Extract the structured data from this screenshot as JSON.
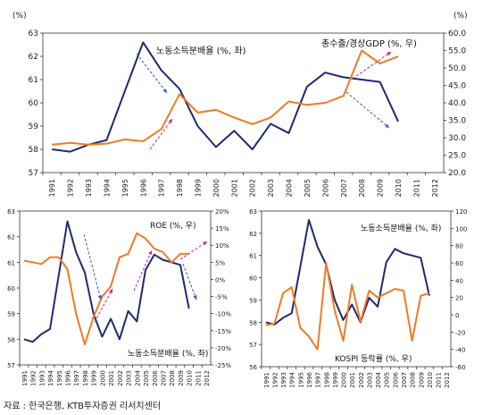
{
  "source": "자료 : 한국은행, KTB투자증권 리서치센터",
  "colors": {
    "labor": "#1f2a6e",
    "other": "#f07a24",
    "axis": "#333333",
    "arrow_red": "#cc2288",
    "arrow_blue": "#2f5fb4"
  },
  "chart_data": [
    {
      "type": "line",
      "title": "",
      "dual_axis": true,
      "left_unit": "(%)",
      "right_unit": "(%)",
      "categories": [
        "1991",
        "1992",
        "1993",
        "1994",
        "1995",
        "1996",
        "1997",
        "1998",
        "1999",
        "2000",
        "2001",
        "2002",
        "2003",
        "2004",
        "2005",
        "2006",
        "2007",
        "2008",
        "2009",
        "2010",
        "2011",
        "2012"
      ],
      "yleft": {
        "min": 57,
        "max": 63,
        "ticks": [
          "57",
          "58",
          "59",
          "60",
          "61",
          "62",
          "63"
        ]
      },
      "yright": {
        "min": 20,
        "max": 60,
        "ticks": [
          "20.0",
          "25.0",
          "30.0",
          "35.0",
          "40.0",
          "45.0",
          "50.0",
          "55.0",
          "60.0"
        ]
      },
      "series": [
        {
          "name": "노동소득분배율 (%, 좌)",
          "axis": "left",
          "color": "#1f2a6e",
          "values": [
            58.0,
            57.9,
            58.2,
            58.4,
            60.5,
            62.6,
            61.4,
            60.6,
            59.0,
            58.1,
            58.8,
            58.0,
            59.1,
            58.7,
            60.7,
            61.3,
            61.1,
            61.0,
            60.9,
            59.2,
            null,
            null
          ]
        },
        {
          "name": "총수출/경상GDP (%, 우)",
          "axis": "right",
          "color": "#f07a24",
          "values": [
            28.0,
            28.5,
            28.0,
            28.3,
            29.5,
            29.0,
            32.5,
            42.5,
            37.2,
            38.0,
            35.8,
            33.9,
            35.8,
            40.4,
            39.4,
            40.0,
            42.0,
            55.0,
            51.3,
            53.3,
            null,
            null
          ]
        }
      ],
      "annotations": [
        "노동소득분배율 (%, 좌)",
        "총수출/경상GDP (%, 우)"
      ]
    },
    {
      "type": "line",
      "title": "",
      "dual_axis": true,
      "categories": [
        "1991",
        "1992",
        "1993",
        "1994",
        "1995",
        "1996",
        "1997",
        "1998",
        "1999",
        "2000",
        "2001",
        "2002",
        "2003",
        "2004",
        "2005",
        "2006",
        "2007",
        "2008",
        "2009",
        "2010",
        "2011",
        "2012"
      ],
      "yleft": {
        "min": 57,
        "max": 63,
        "ticks": [
          "57",
          "58",
          "59",
          "60",
          "61",
          "62",
          "63"
        ]
      },
      "yright": {
        "min": -25,
        "max": 20,
        "ticks": [
          "-25%",
          "-20%",
          "-15%",
          "-10%",
          "-5%",
          "0%",
          "5%",
          "10%",
          "15%",
          "20%"
        ]
      },
      "series": [
        {
          "name": "노동소득분배율 (%, 좌)",
          "axis": "left",
          "color": "#1f2a6e",
          "values": [
            58.0,
            57.9,
            58.2,
            58.4,
            60.5,
            62.6,
            61.4,
            60.6,
            59.0,
            58.1,
            58.8,
            58.0,
            59.1,
            58.7,
            60.7,
            61.3,
            61.1,
            61.0,
            60.9,
            59.2,
            null,
            null
          ]
        },
        {
          "name": "ROE (%, 우)",
          "axis": "right",
          "color": "#f07a24",
          "values": [
            5.5,
            5.0,
            4.5,
            6.5,
            6.5,
            3.0,
            -10.0,
            -19.0,
            -11.0,
            -5.0,
            -2.0,
            6.5,
            7.5,
            13.5,
            12.0,
            9.0,
            8.0,
            5.0,
            7.5,
            7.5,
            null,
            null
          ]
        }
      ],
      "annotations": [
        "ROE (%, 우)",
        "노동소득분배율 (%, 좌)"
      ]
    },
    {
      "type": "line",
      "title": "",
      "dual_axis": true,
      "categories": [
        "1991",
        "1992",
        "1993",
        "1994",
        "1995",
        "1996",
        "1997",
        "1998",
        "1999",
        "2000",
        "2001",
        "2002",
        "2003",
        "2004",
        "2005",
        "2006",
        "2007",
        "2008",
        "2009",
        "2010",
        "2011",
        "2012"
      ],
      "yleft": {
        "min": 56,
        "max": 63,
        "ticks": [
          "56",
          "57",
          "58",
          "59",
          "60",
          "61",
          "62",
          "63"
        ]
      },
      "yright": {
        "min": -60,
        "max": 120,
        "ticks": [
          "-60",
          "-40",
          "-20",
          "0",
          "20",
          "40",
          "60",
          "80",
          "100",
          "120"
        ]
      },
      "series": [
        {
          "name": "노동소득분배율 (%, 좌)",
          "axis": "left",
          "color": "#1f2a6e",
          "values": [
            58.0,
            57.9,
            58.2,
            58.4,
            60.5,
            62.6,
            61.4,
            60.6,
            59.0,
            58.1,
            58.8,
            58.0,
            59.1,
            58.7,
            60.7,
            61.3,
            61.1,
            61.0,
            60.9,
            59.2,
            null,
            null
          ]
        },
        {
          "name": "KOSPI 등락률 (%, 우)",
          "axis": "right",
          "color": "#f07a24",
          "values": [
            -12,
            -10,
            25,
            32,
            -15,
            -25,
            -40,
            60,
            5,
            -30,
            35,
            -8,
            28,
            20,
            25,
            30,
            28,
            -30,
            22,
            25,
            null,
            null
          ]
        }
      ],
      "annotations": [
        "노동소득분배율 (%, 좌)",
        "KOSPI 등락률 (%, 우)"
      ]
    }
  ]
}
